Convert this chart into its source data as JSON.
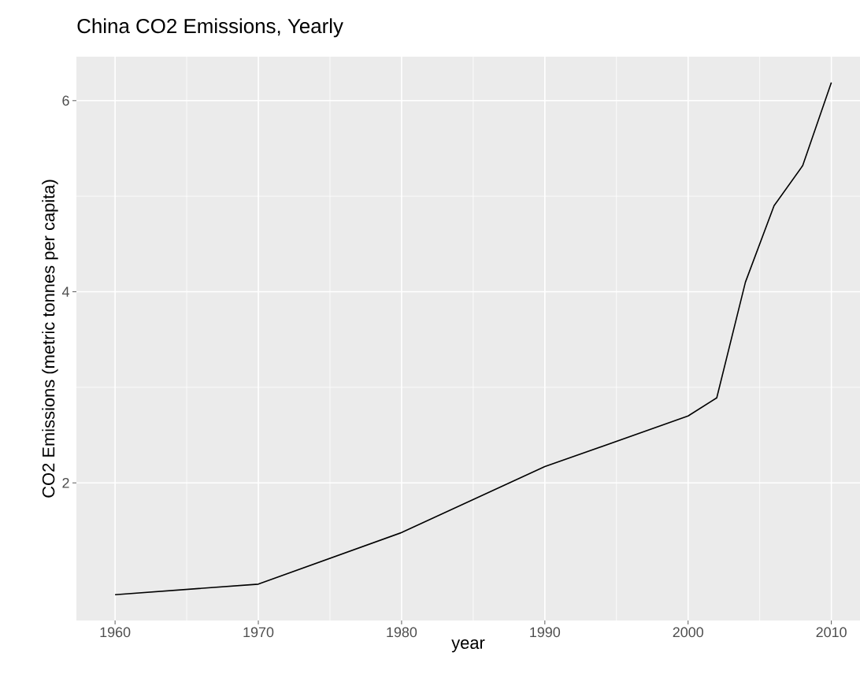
{
  "chart_data": {
    "type": "line",
    "title": "China CO2 Emissions, Yearly",
    "xlabel": "year",
    "ylabel": "CO2 Emissions (metric tonnes per capita)",
    "x": [
      1960,
      1970,
      1980,
      1990,
      2000,
      2002,
      2004,
      2006,
      2008,
      2010
    ],
    "values": [
      0.83,
      0.94,
      1.48,
      2.17,
      2.7,
      2.89,
      4.1,
      4.9,
      5.32,
      6.19
    ],
    "color": "#000000",
    "xlim": [
      1957.3,
      2012.0
    ],
    "ylim": [
      0.56,
      6.46
    ],
    "xticks": [
      1960,
      1970,
      1980,
      1990,
      2000,
      2010
    ],
    "yticks": [
      2,
      4,
      6
    ],
    "grid": true
  }
}
